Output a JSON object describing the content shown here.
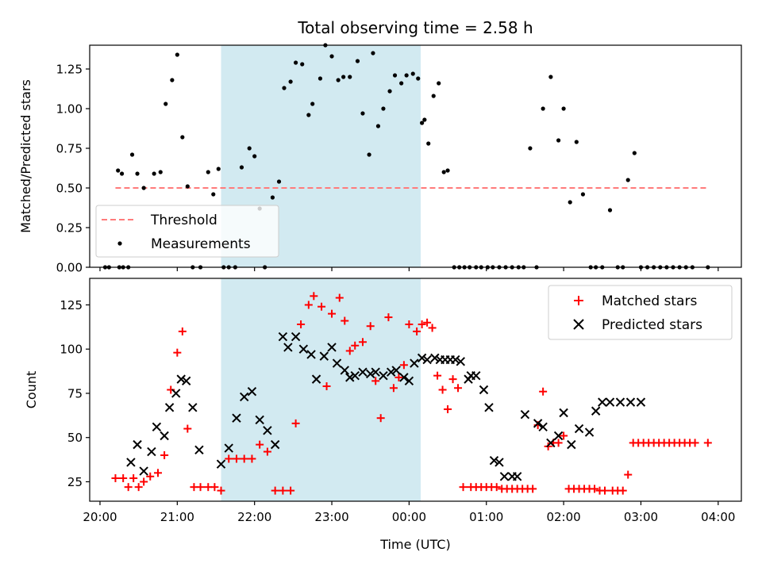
{
  "colors": {
    "threshold": "#ff7b7b",
    "measurement": "#000000",
    "matched": "#ff0000",
    "predicted": "#000000",
    "shade": "#add8e6"
  },
  "chart_data": [
    {
      "type": "scatter",
      "title": "Total observing time = 2.58 h",
      "xlabel": "",
      "ylabel": "Matched/Predicted stars",
      "x_unit": "minutes relative to 00:00 UTC",
      "xlim": [
        -248,
        258
      ],
      "ylim": [
        0,
        1.4
      ],
      "shaded_region": [
        -146,
        9
      ],
      "y_ticks": [
        "0.00",
        "0.25",
        "0.50",
        "0.75",
        "1.00",
        "1.25"
      ],
      "legend": {
        "position": "lower-left",
        "entries": [
          "Threshold",
          "Measurements"
        ]
      },
      "threshold": {
        "name": "Threshold",
        "y": 0.5,
        "x_start": -228,
        "x_end": 232
      },
      "series": [
        {
          "name": "Measurements",
          "x": [
            -226,
            -223,
            -215,
            -211,
            -206,
            -198,
            -193,
            -189,
            -184,
            -180,
            -176,
            -172,
            -168,
            -162,
            -156,
            -152,
            -148,
            -144,
            -140,
            -135,
            -130,
            -124,
            -120,
            -116,
            -112,
            -106,
            -101,
            -97,
            -92,
            -88,
            -83,
            -78,
            -75,
            -69,
            -65,
            -60,
            -55,
            -51,
            -46,
            -40,
            -36,
            -31,
            -28,
            -24,
            -20,
            -15,
            -11,
            -6,
            -2,
            3,
            7,
            10,
            12,
            15,
            19,
            23,
            27,
            30,
            35,
            39,
            43,
            47,
            52,
            56,
            61,
            65,
            70,
            75,
            80,
            85,
            89,
            94,
            99,
            104,
            110,
            116,
            120,
            125,
            130,
            135,
            141,
            145,
            150,
            156,
            162,
            166,
            170,
            175,
            180,
            185,
            190,
            195,
            200,
            205,
            210,
            215,
            220,
            232,
            -236,
            -233,
            -225,
            -218,
            -222
          ],
          "y": [
            0.61,
            0.59,
            0.71,
            0.59,
            0.5,
            0.59,
            0.6,
            1.03,
            1.18,
            1.34,
            0.82,
            0.51,
            0.0,
            0.0,
            0.6,
            0.46,
            0.62,
            0.0,
            0.0,
            0.0,
            0.63,
            0.75,
            0.7,
            0.37,
            0.0,
            0.44,
            0.54,
            1.13,
            1.17,
            1.29,
            1.28,
            0.96,
            1.03,
            1.19,
            1.4,
            1.33,
            1.18,
            1.2,
            1.2,
            1.3,
            0.97,
            0.71,
            1.35,
            0.89,
            1.0,
            1.11,
            1.21,
            1.16,
            1.21,
            1.22,
            1.19,
            0.91,
            0.93,
            0.78,
            1.08,
            1.16,
            0.6,
            0.61,
            0.0,
            0.0,
            0.0,
            0.0,
            0.0,
            0.0,
            0.0,
            0.0,
            0.0,
            0.0,
            0.0,
            0.0,
            0.0,
            0.75,
            0.0,
            1.0,
            1.2,
            0.8,
            1.0,
            0.41,
            0.79,
            0.46,
            0.0,
            0.0,
            0.0,
            0.36,
            0.0,
            0.0,
            0.55,
            0.72,
            0.0,
            0.0,
            0.0,
            0.0,
            0.0,
            0.0,
            0.0,
            0.0,
            0.0,
            0.0,
            0.0,
            0.0,
            0.0,
            0.0,
            0.0
          ]
        }
      ]
    },
    {
      "type": "scatter",
      "title": "",
      "xlabel": "Time (UTC)",
      "ylabel": "Count",
      "x_unit": "minutes relative to 00:00 UTC",
      "xlim": [
        -248,
        258
      ],
      "ylim": [
        14,
        140
      ],
      "shaded_region": [
        -146,
        9
      ],
      "y_ticks": [
        "25",
        "50",
        "75",
        "100",
        "125"
      ],
      "x_ticks": [
        "20:00",
        "21:00",
        "22:00",
        "23:00",
        "00:00",
        "01:00",
        "02:00",
        "03:00",
        "04:00"
      ],
      "x_tick_values": [
        -240,
        -180,
        -120,
        -60,
        0,
        60,
        120,
        180,
        240
      ],
      "legend": {
        "position": "top-right",
        "entries": [
          "Matched stars",
          "Predicted stars"
        ]
      },
      "series": [
        {
          "name": "Matched stars",
          "marker": "+",
          "x": [
            -228,
            -222,
            -218,
            -214,
            -210,
            -206,
            -201,
            -195,
            -190,
            -185,
            -180,
            -176,
            -172,
            -167,
            -162,
            -156,
            -151,
            -146,
            -140,
            -134,
            -128,
            -122,
            -116,
            -110,
            -104,
            -98,
            -92,
            -88,
            -84,
            -78,
            -74,
            -68,
            -64,
            -60,
            -54,
            -50,
            -46,
            -42,
            -36,
            -30,
            -26,
            -22,
            -16,
            -12,
            -8,
            -4,
            0,
            6,
            10,
            14,
            18,
            22,
            26,
            30,
            34,
            38,
            42,
            48,
            52,
            56,
            60,
            64,
            68,
            72,
            76,
            80,
            84,
            88,
            92,
            96,
            100,
            104,
            108,
            112,
            116,
            120,
            124,
            128,
            132,
            136,
            140,
            144,
            148,
            152,
            158,
            162,
            166,
            170,
            174,
            178,
            182,
            186,
            190,
            194,
            198,
            202,
            206,
            210,
            214,
            218,
            222,
            232
          ],
          "y": [
            27,
            27,
            22,
            27,
            22,
            25,
            28,
            30,
            40,
            77,
            98,
            110,
            55,
            22,
            22,
            22,
            22,
            20,
            38,
            38,
            38,
            38,
            46,
            42,
            20,
            20,
            20,
            58,
            114,
            125,
            130,
            124,
            79,
            120,
            129,
            116,
            99,
            102,
            104,
            113,
            82,
            61,
            118,
            78,
            84,
            91,
            114,
            110,
            114,
            115,
            112,
            85,
            77,
            66,
            83,
            78,
            22,
            22,
            22,
            22,
            22,
            22,
            22,
            21,
            21,
            21,
            21,
            21,
            21,
            21,
            57,
            76,
            45,
            47,
            47,
            51,
            21,
            21,
            21,
            21,
            21,
            21,
            20,
            20,
            20,
            20,
            20,
            29,
            47,
            47,
            47,
            47,
            47,
            47,
            47,
            47,
            47,
            47,
            47,
            47,
            47,
            47
          ]
        },
        {
          "name": "Predicted stars",
          "marker": "x",
          "x": [
            -216,
            -211,
            -206,
            -200,
            -196,
            -190,
            -186,
            -181,
            -177,
            -173,
            -168,
            -163,
            -146,
            -140,
            -134,
            -128,
            -122,
            -116,
            -110,
            -104,
            -98,
            -94,
            -88,
            -82,
            -76,
            -72,
            -66,
            -60,
            -56,
            -50,
            -46,
            -42,
            -36,
            -30,
            -26,
            -20,
            -14,
            -10,
            -4,
            0,
            4,
            10,
            14,
            20,
            24,
            28,
            32,
            36,
            40,
            46,
            48,
            52,
            58,
            62,
            66,
            70,
            74,
            80,
            84,
            90,
            100,
            104,
            110,
            116,
            120,
            126,
            132,
            140,
            145,
            150,
            156,
            164,
            172,
            180
          ],
          "y": [
            36,
            46,
            31,
            42,
            56,
            51,
            67,
            75,
            83,
            82,
            67,
            43,
            35,
            44,
            61,
            73,
            76,
            60,
            54,
            46,
            107,
            101,
            107,
            100,
            97,
            83,
            96,
            101,
            92,
            88,
            84,
            85,
            87,
            86,
            87,
            85,
            87,
            88,
            84,
            82,
            92,
            95,
            94,
            95,
            94,
            94,
            94,
            94,
            93,
            83,
            85,
            85,
            77,
            67,
            37,
            36,
            28,
            28,
            28,
            63,
            58,
            56,
            47,
            51,
            64,
            46,
            55,
            53,
            65,
            70,
            70,
            70,
            70,
            70
          ]
        }
      ]
    }
  ]
}
